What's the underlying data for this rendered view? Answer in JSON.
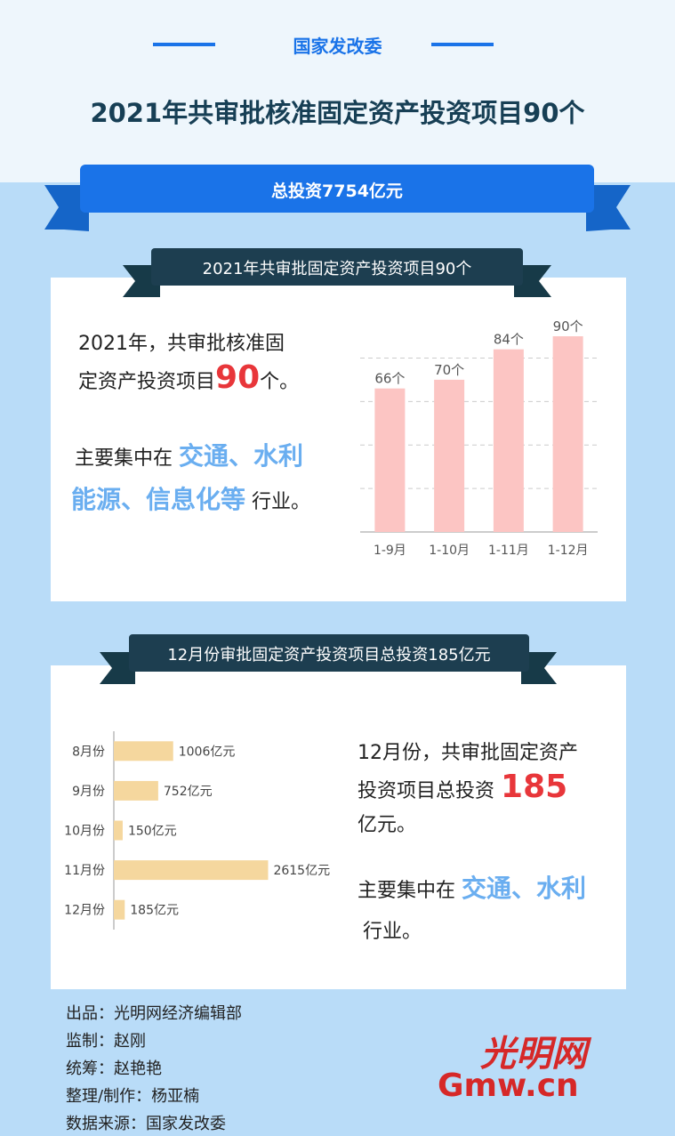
{
  "header": {
    "org": "国家发改委",
    "title": "2021年共审批核准固定资产投资项目90个",
    "banner": "总投资7754亿元"
  },
  "section1": {
    "ribbon": "2021年共审批固定资产投资项目90个",
    "text1a": "2021年，共审批核准固",
    "text1b": "定资产投资项目",
    "highlight": "90",
    "text1c": "个。",
    "text2a": "主要集中在",
    "keywords1": "交通、水利",
    "keywords2": "能源、信息化等",
    "text2b": "行业。"
  },
  "section2": {
    "ribbon": "12月份审批固定资产投资项目总投资185亿元",
    "text1a": "12月份，共审批固定资产",
    "text1b": "投资项目总投资",
    "highlight": "185",
    "text1c": "亿元。",
    "text2a": "主要集中在",
    "keywords": "交通、水利",
    "text2b": "行业。"
  },
  "chart_data": [
    {
      "type": "bar",
      "categories": [
        "1-9月",
        "1-10月",
        "1-11月",
        "1-12月"
      ],
      "values": [
        66,
        70,
        84,
        90
      ],
      "value_labels": [
        "66个",
        "70个",
        "84个",
        "90个"
      ],
      "color": "#fcc5c3",
      "ylim": [
        0,
        90
      ],
      "yticks": [
        20,
        40,
        60,
        80
      ],
      "grid": true
    },
    {
      "type": "bar",
      "orientation": "horizontal",
      "categories": [
        "8月份",
        "9月份",
        "10月份",
        "11月份",
        "12月份"
      ],
      "values": [
        1006,
        752,
        150,
        2615,
        185
      ],
      "value_labels": [
        "1006亿元",
        "752亿元",
        "150亿元",
        "2615亿元",
        "185亿元"
      ],
      "color": "#f5d79e",
      "xlim": [
        0,
        3000
      ]
    }
  ],
  "credits": [
    "出品：光明网经济编辑部",
    "监制：赵刚",
    "统筹：赵艳艳",
    "整理/制作：杨亚楠",
    "数据来源：国家发改委"
  ],
  "logo": {
    "name": "光明网",
    "domain": "Gmw.cn"
  }
}
